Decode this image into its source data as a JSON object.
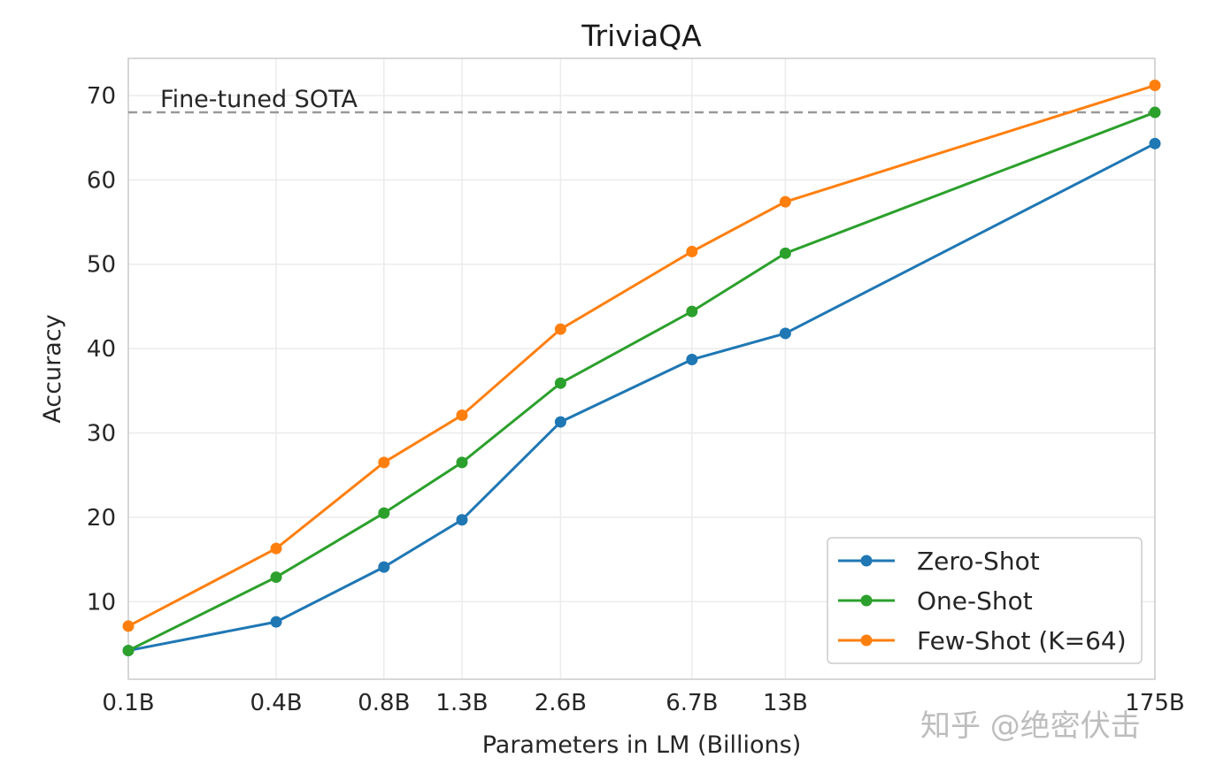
{
  "chart_data": {
    "type": "line",
    "title": "TriviaQA",
    "xlabel": "Parameters in LM (Billions)",
    "ylabel": "Accuracy",
    "categories": [
      "0.1B",
      "0.4B",
      "0.8B",
      "1.3B",
      "2.6B",
      "6.7B",
      "13B",
      "175B"
    ],
    "x_scale": "log",
    "ylim": [
      0.8,
      74.4
    ],
    "yticks": [
      10,
      20,
      30,
      40,
      50,
      60,
      70
    ],
    "grid": true,
    "legend_position": "bottom-right",
    "series": [
      {
        "name": "Zero-Shot",
        "color": "#1f77b4",
        "values": [
          4.2,
          7.6,
          14.1,
          19.7,
          31.3,
          38.7,
          41.8,
          64.3
        ]
      },
      {
        "name": "One-Shot",
        "color": "#2ca02c",
        "values": [
          4.2,
          12.9,
          20.5,
          26.5,
          35.9,
          44.4,
          51.3,
          68.0
        ]
      },
      {
        "name": "Few-Shot (K=64)",
        "color": "#ff7f0e",
        "values": [
          7.1,
          16.3,
          26.5,
          32.1,
          42.3,
          51.5,
          57.4,
          71.2
        ]
      }
    ],
    "reference_line": {
      "label": "Fine-tuned SOTA",
      "value": 68.0,
      "color": "#999999",
      "style": "dashed"
    }
  },
  "watermark": "知乎 @绝密伏击"
}
